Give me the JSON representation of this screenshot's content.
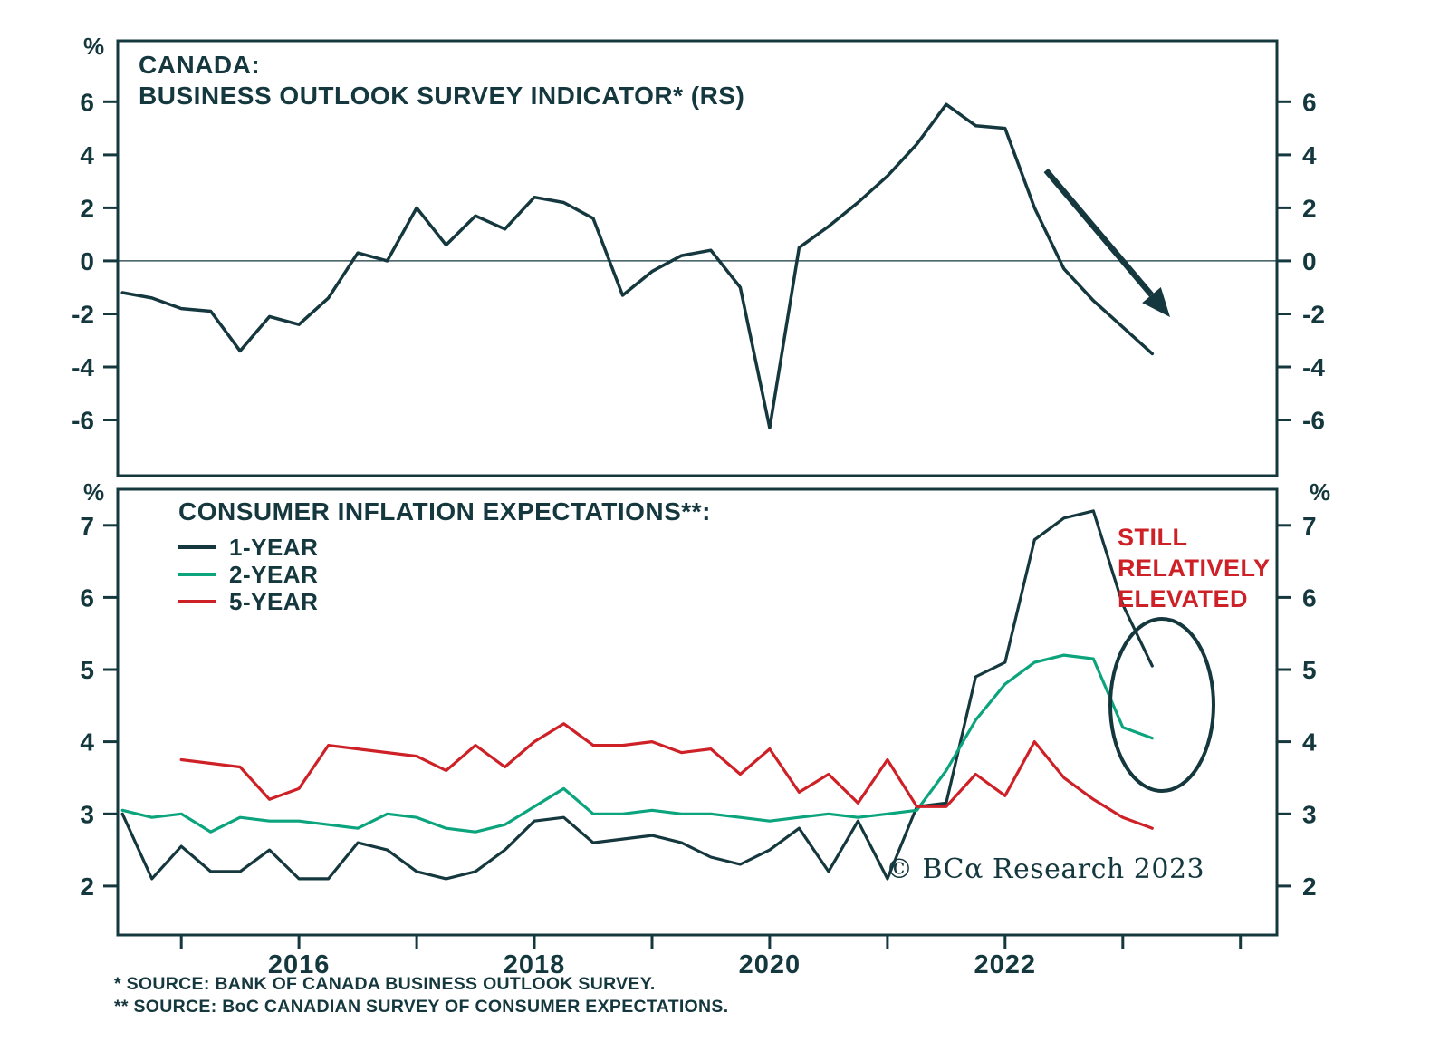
{
  "colors": {
    "axis": "#14383e",
    "text": "#14383e",
    "line_dark": "#14383e",
    "line_teal": "#0ba47d",
    "line_red": "#ce2127",
    "annotation_red": "#ce2127"
  },
  "chart_data": [
    {
      "type": "line",
      "panel": "top",
      "title_line1": "CANADA:",
      "title_line2": "BUSINESS OUTLOOK SURVEY INDICATOR* (RS)",
      "unit": "%",
      "ylim": [
        -8.1,
        8.3
      ],
      "yticks": [
        6,
        4,
        2,
        0,
        -2,
        -4,
        -6
      ],
      "xlim": [
        2014.46,
        2024.31
      ],
      "zero_line": true,
      "grid": false,
      "series": [
        {
          "name": "Business Outlook Survey indicator",
          "color_key": "line_dark",
          "x_start": 2014.5,
          "x_step": 0.25,
          "values": [
            -1.2,
            -1.4,
            -1.8,
            -1.9,
            -3.4,
            -2.1,
            -2.4,
            -1.4,
            0.3,
            0.0,
            2.0,
            0.6,
            1.7,
            1.2,
            2.4,
            2.2,
            1.6,
            -1.3,
            -0.4,
            0.2,
            0.4,
            -1.0,
            -6.3,
            0.5,
            1.3,
            2.2,
            3.2,
            4.4,
            5.9,
            5.1,
            5.0,
            2.0,
            -0.3,
            -1.5,
            -2.5,
            -3.5
          ]
        }
      ]
    },
    {
      "type": "line",
      "panel": "bottom",
      "title": "CONSUMER INFLATION EXPECTATIONS**:",
      "unit": "%",
      "ylim": [
        1.32,
        7.5
      ],
      "yticks": [
        7,
        6,
        5,
        4,
        3,
        2
      ],
      "xlim": [
        2014.46,
        2024.31
      ],
      "xticks": [
        2015,
        2016,
        2017,
        2018,
        2019,
        2020,
        2021,
        2022,
        2023,
        2024
      ],
      "x_label_ticks": [
        2016,
        2018,
        2020,
        2022
      ],
      "zero_line": false,
      "grid": false,
      "series": [
        {
          "name": "1-YEAR",
          "color_key": "line_dark",
          "x_start": 2014.5,
          "x_step": 0.25,
          "values": [
            3.0,
            2.1,
            2.55,
            2.2,
            2.2,
            2.5,
            2.1,
            2.1,
            2.6,
            2.5,
            2.2,
            2.1,
            2.2,
            2.5,
            2.9,
            2.95,
            2.6,
            2.65,
            2.7,
            2.6,
            2.4,
            2.3,
            2.5,
            2.8,
            2.2,
            2.9,
            2.1,
            3.1,
            3.15,
            4.9,
            5.1,
            6.8,
            7.1,
            7.2,
            5.9,
            5.05
          ]
        },
        {
          "name": "2-YEAR",
          "color_key": "line_teal",
          "x_start": 2014.5,
          "x_step": 0.25,
          "values": [
            3.05,
            2.95,
            3.0,
            2.75,
            2.95,
            2.9,
            2.9,
            2.85,
            2.8,
            3.0,
            2.95,
            2.8,
            2.75,
            2.85,
            3.1,
            3.35,
            3.0,
            3.0,
            3.05,
            3.0,
            3.0,
            2.95,
            2.9,
            2.95,
            3.0,
            2.95,
            3.0,
            3.05,
            3.6,
            4.3,
            4.8,
            5.1,
            5.2,
            5.15,
            4.2,
            4.05
          ]
        },
        {
          "name": "5-YEAR",
          "color_key": "line_red",
          "x_start": 2015.0,
          "x_step": 0.25,
          "values": [
            3.75,
            3.7,
            3.65,
            3.2,
            3.35,
            3.95,
            3.9,
            3.85,
            3.8,
            3.6,
            3.95,
            3.65,
            4.0,
            4.25,
            3.95,
            3.95,
            4.0,
            3.85,
            3.9,
            3.55,
            3.9,
            3.3,
            3.55,
            3.15,
            3.75,
            3.1,
            3.1,
            3.55,
            3.25,
            4.0,
            3.5,
            3.2,
            2.95,
            2.8
          ]
        }
      ]
    }
  ],
  "annotations": {
    "elevated_text": "STILL RELATIVELY ELEVATED"
  },
  "branding": {
    "copyright": "© BCα Research 2023"
  },
  "footnotes": {
    "line1": "*  SOURCE: BANK OF CANADA BUSINESS OUTLOOK SURVEY.",
    "line2": "** SOURCE: BoC CANADIAN SURVEY OF CONSUMER EXPECTATIONS."
  }
}
